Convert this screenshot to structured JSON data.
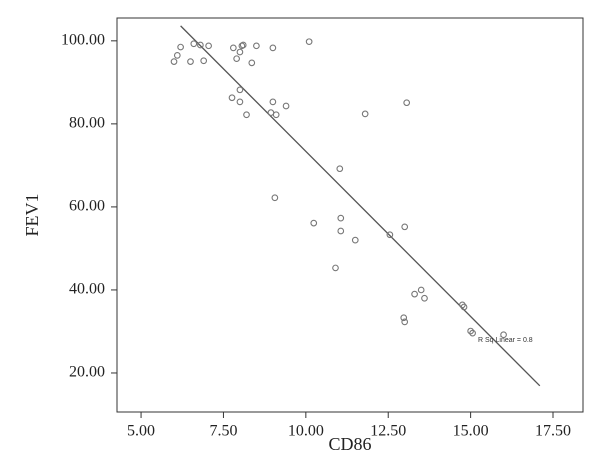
{
  "chart_data": {
    "type": "scatter",
    "x_label": "CD86",
    "y_label": "FEV1",
    "annotation": "R Sq Linear = 0.8",
    "xlim": [
      4.27,
      18.41
    ],
    "ylim": [
      10.6,
      105.5
    ],
    "xticks": [
      {
        "value": 5,
        "label": "5.00"
      },
      {
        "value": 7.5,
        "label": "7.50"
      },
      {
        "value": 10,
        "label": "10.00"
      },
      {
        "value": 12.5,
        "label": "12.50"
      },
      {
        "value": 15,
        "label": "15.00"
      },
      {
        "value": 17.5,
        "label": "17.50"
      }
    ],
    "yticks": [
      {
        "value": 20,
        "label": "20.00"
      },
      {
        "value": 40,
        "label": "40.00"
      },
      {
        "value": 60,
        "label": "60.00"
      },
      {
        "value": 80,
        "label": "80.00"
      },
      {
        "value": 100,
        "label": "100.00"
      }
    ],
    "color": "#777777",
    "line_color": "#555555",
    "x": [
      6.0,
      6.1,
      6.2,
      6.5,
      6.6,
      6.8,
      6.9,
      7.05,
      7.8,
      7.9,
      8.0,
      8.06,
      8.1,
      8.36,
      8.5,
      9.0,
      10.1,
      7.76,
      8.0,
      8.0,
      9.0,
      9.4,
      8.94,
      9.1,
      8.2,
      11.8,
      13.06,
      11.03,
      9.06,
      10.24,
      11.06,
      11.06,
      11.5,
      13.0,
      12.55,
      10.9,
      13.5,
      13.3,
      13.6,
      14.75,
      14.8,
      12.97,
      13.0,
      15.0,
      15.06,
      16.0
    ],
    "y": [
      95,
      96.5,
      98.5,
      95,
      99.3,
      99,
      95.2,
      98.8,
      98.3,
      95.7,
      97.3,
      98.8,
      99,
      94.7,
      98.8,
      98.3,
      99.8,
      86.3,
      88.2,
      85.3,
      85.3,
      84.3,
      82.7,
      82.2,
      82.2,
      82.4,
      85.1,
      69.2,
      62.2,
      56.1,
      57.3,
      54.2,
      52,
      55.2,
      53.3,
      45.3,
      40,
      39,
      38,
      36.4,
      35.9,
      33.3,
      32.3,
      30.1,
      29.6,
      29.2
    ],
    "fit_line": {
      "x": [
        6.2,
        17.1
      ],
      "y": [
        103.6,
        16.9
      ]
    }
  }
}
